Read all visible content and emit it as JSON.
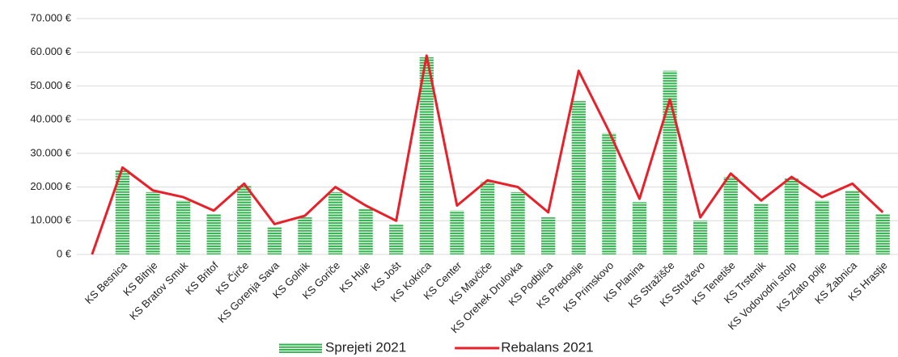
{
  "chart_data": {
    "type": "bar_line",
    "categories": [
      null,
      "KS Besnica",
      "KS Bitnje",
      "KS Bratov Smuk",
      "KS Britof",
      "KS Čirče",
      "KS Gorenja Sava",
      "KS Golnik",
      "KS Goriče",
      "KS Huje",
      "KS Jošt",
      "KS Kokrica",
      "KS Center",
      "KS Mavčiče",
      "KS Orehek Drulovka",
      "KS Podblica",
      "KS Predoslje",
      "KS Primskovo",
      "KS Planina",
      "KS Stražišče",
      "KS Struževo",
      "KS Tenetiše",
      "KS Trstenik",
      "KS Vodovodni stolp",
      "KS Zlato polje",
      "KS Žabnica",
      "KS Hrastje"
    ],
    "series": [
      {
        "name": "Sprejeti 2021",
        "type": "bar",
        "color": "#2eb34a",
        "values": [
          null,
          25000,
          18500,
          16000,
          12000,
          20500,
          8000,
          11000,
          18500,
          13500,
          9000,
          58500,
          13000,
          21500,
          18500,
          11000,
          45500,
          36000,
          15500,
          54500,
          10000,
          23000,
          15000,
          22500,
          16000,
          19000,
          12000
        ]
      },
      {
        "name": "Rebalans 2021",
        "type": "line",
        "color": "#e8202a",
        "values": [
          0,
          25800,
          19000,
          17000,
          13000,
          21000,
          9000,
          11500,
          20000,
          14500,
          10000,
          59000,
          14500,
          22000,
          20000,
          12500,
          54500,
          36500,
          16500,
          46000,
          11000,
          24000,
          16000,
          23000,
          17000,
          21000,
          12500
        ]
      }
    ],
    "ylim": [
      0,
      70000
    ],
    "yticks": [
      {
        "value": 0,
        "label": "0 €"
      },
      {
        "value": 10000,
        "label": "10.000 €"
      },
      {
        "value": 20000,
        "label": "20.000 €"
      },
      {
        "value": 30000,
        "label": "30.000 €"
      },
      {
        "value": 40000,
        "label": "40.000 €"
      },
      {
        "value": 50000,
        "label": "50.000 €"
      },
      {
        "value": 60000,
        "label": "60.000 €"
      },
      {
        "value": 70000,
        "label": "70.000 €"
      }
    ],
    "grid": true,
    "legend": "bottom"
  }
}
